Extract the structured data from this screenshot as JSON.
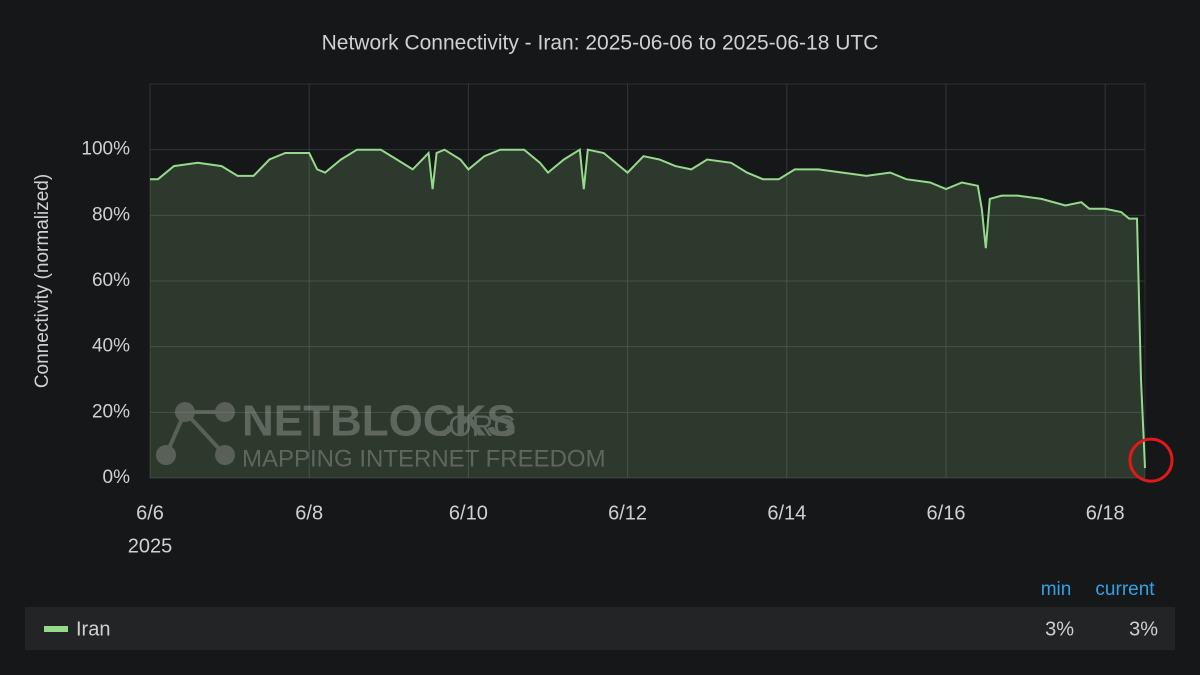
{
  "chart_data": {
    "type": "area",
    "title": "Network Connectivity - Iran: 2025-06-06 to 2025-06-18 UTC",
    "y_label": "Connectivity (normalized)",
    "x_year_label": "2025",
    "xlim": [
      6,
      18.5
    ],
    "xticks": [
      {
        "value": 6,
        "label": "6/6"
      },
      {
        "value": 8,
        "label": "6/8"
      },
      {
        "value": 10,
        "label": "6/10"
      },
      {
        "value": 12,
        "label": "6/12"
      },
      {
        "value": 14,
        "label": "6/14"
      },
      {
        "value": 16,
        "label": "6/16"
      },
      {
        "value": 18,
        "label": "6/18"
      }
    ],
    "ylim": [
      0,
      120
    ],
    "yticks": [
      {
        "value": 0,
        "label": "0%"
      },
      {
        "value": 20,
        "label": "20%"
      },
      {
        "value": 40,
        "label": "40%"
      },
      {
        "value": 60,
        "label": "60%"
      },
      {
        "value": 80,
        "label": "80%"
      },
      {
        "value": 100,
        "label": "100%"
      }
    ],
    "grid": true,
    "series": [
      {
        "name": "Iran",
        "color": "#96d98d",
        "x": [
          6.0,
          6.1,
          6.3,
          6.6,
          6.9,
          7.1,
          7.3,
          7.5,
          7.7,
          8.0,
          8.1,
          8.2,
          8.4,
          8.6,
          8.9,
          9.1,
          9.3,
          9.5,
          9.55,
          9.6,
          9.7,
          9.9,
          10.0,
          10.2,
          10.4,
          10.7,
          10.9,
          11.0,
          11.2,
          11.4,
          11.45,
          11.5,
          11.7,
          11.9,
          12.0,
          12.2,
          12.4,
          12.6,
          12.8,
          13.0,
          13.3,
          13.5,
          13.7,
          13.9,
          14.1,
          14.4,
          14.7,
          15.0,
          15.3,
          15.5,
          15.8,
          16.0,
          16.2,
          16.4,
          16.45,
          16.5,
          16.55,
          16.7,
          16.9,
          17.2,
          17.5,
          17.7,
          17.8,
          18.0,
          18.2,
          18.3,
          18.4,
          18.45,
          18.5
        ],
        "values": [
          91,
          91,
          95,
          96,
          95,
          92,
          92,
          97,
          99,
          99,
          94,
          93,
          97,
          100,
          100,
          97,
          94,
          99,
          88,
          99,
          100,
          97,
          94,
          98,
          100,
          100,
          96,
          93,
          97,
          100,
          88,
          100,
          99,
          95,
          93,
          98,
          97,
          95,
          94,
          97,
          96,
          93,
          91,
          91,
          94,
          94,
          93,
          92,
          93,
          91,
          90,
          88,
          90,
          89,
          82,
          70,
          85,
          86,
          86,
          85,
          83,
          84,
          82,
          82,
          81,
          79,
          79,
          30,
          3
        ]
      }
    ],
    "legend_table": {
      "headers": [
        "min",
        "current"
      ],
      "cells": [
        "3%",
        "3%"
      ]
    },
    "watermark": {
      "name": "NETBLOCKS",
      "suffix": ".ORG",
      "tagline": "MAPPING INTERNET FREEDOM"
    }
  }
}
